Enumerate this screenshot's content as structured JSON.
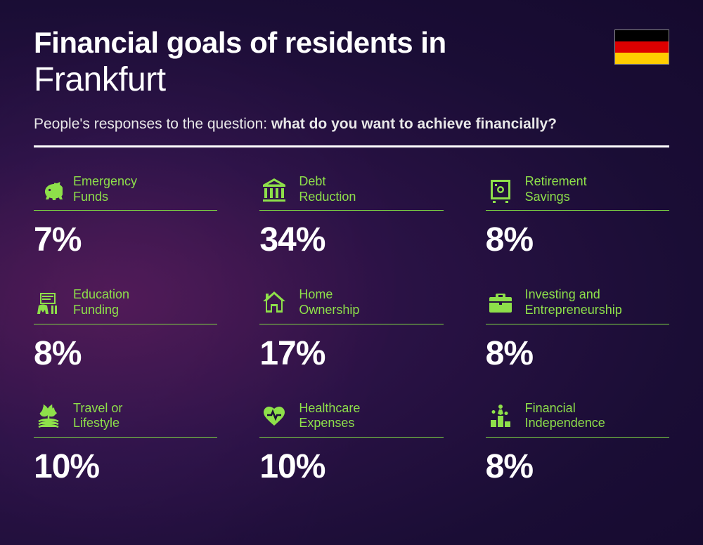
{
  "colors": {
    "accent": "#8ee04a",
    "underline": "#7fd943",
    "text": "#ffffff",
    "flag": [
      "#000000",
      "#dd0000",
      "#ffce00"
    ]
  },
  "typography": {
    "title_bold_size": 42,
    "title_light_size": 48,
    "subtitle_size": 21,
    "label_size": 18,
    "value_size": 48
  },
  "header": {
    "title_prefix": "Financial goals of residents in",
    "city": "Frankfurt",
    "subtitle_lead": "People's responses to the question: ",
    "subtitle_bold": "what do you want to achieve financially?"
  },
  "items": [
    {
      "label": "Emergency\nFunds",
      "value": "7%",
      "icon": "piggy"
    },
    {
      "label": "Debt\nReduction",
      "value": "34%",
      "icon": "bank"
    },
    {
      "label": "Retirement\nSavings",
      "value": "8%",
      "icon": "safe"
    },
    {
      "label": "Education\nFunding",
      "value": "8%",
      "icon": "education"
    },
    {
      "label": "Home\nOwnership",
      "value": "17%",
      "icon": "home"
    },
    {
      "label": "Investing and\nEntrepreneurship",
      "value": "8%",
      "icon": "briefcase"
    },
    {
      "label": "Travel or\nLifestyle",
      "value": "10%",
      "icon": "travel"
    },
    {
      "label": "Healthcare\nExpenses",
      "value": "10%",
      "icon": "health"
    },
    {
      "label": "Financial\nIndependence",
      "value": "8%",
      "icon": "podium"
    }
  ]
}
